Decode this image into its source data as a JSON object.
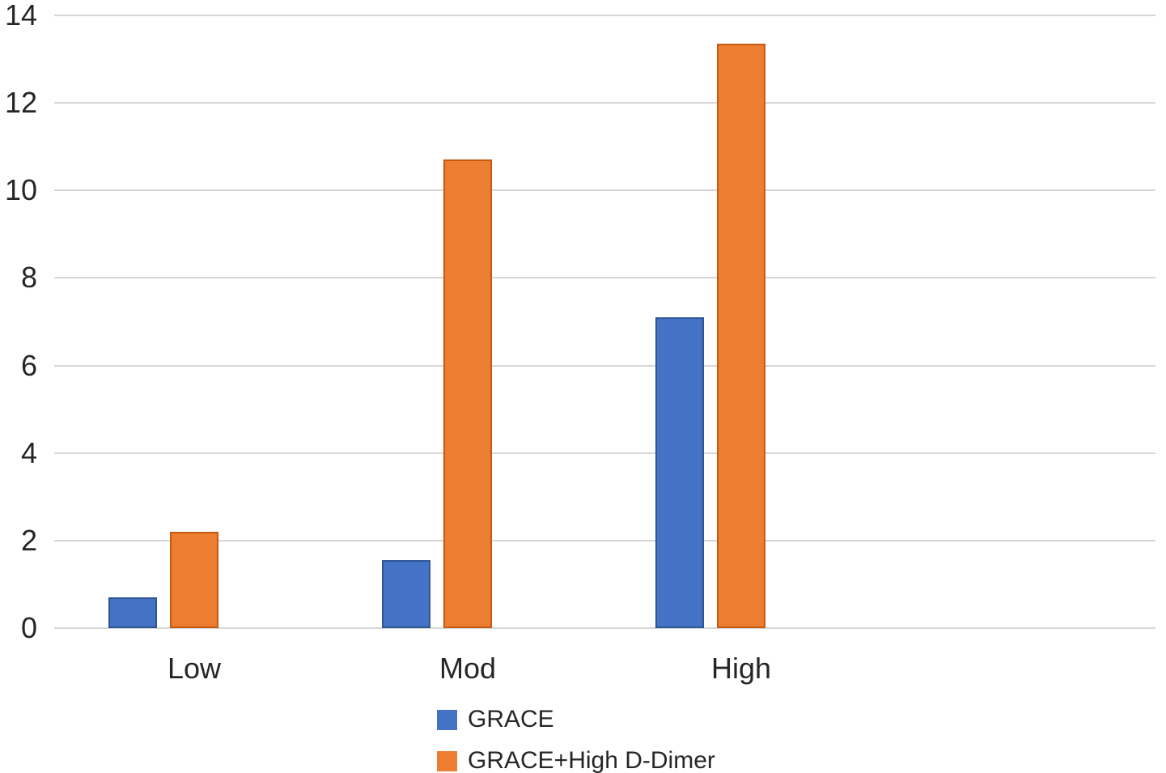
{
  "chart_data": {
    "type": "bar",
    "title": "",
    "xlabel": "",
    "ylabel": "",
    "categories": [
      "Low",
      "Mod",
      "High"
    ],
    "series": [
      {
        "name": "GRACE",
        "color": "#4472C4",
        "border_color": "#2F5597",
        "values": [
          0.7,
          1.55,
          7.1
        ]
      },
      {
        "name": "GRACE+High D-Dimer",
        "color": "#ED7D31",
        "border_color": "#C55A11",
        "values": [
          2.2,
          10.7,
          13.35
        ]
      }
    ],
    "ylim": [
      0,
      14
    ],
    "yticks": [
      0,
      2,
      4,
      6,
      8,
      10,
      12,
      14
    ],
    "grid": "horizontal",
    "gridline_color": "#D6D6D6",
    "text_color": "#262626",
    "background_color": "#FFFFFF",
    "legend_position": "bottom"
  }
}
